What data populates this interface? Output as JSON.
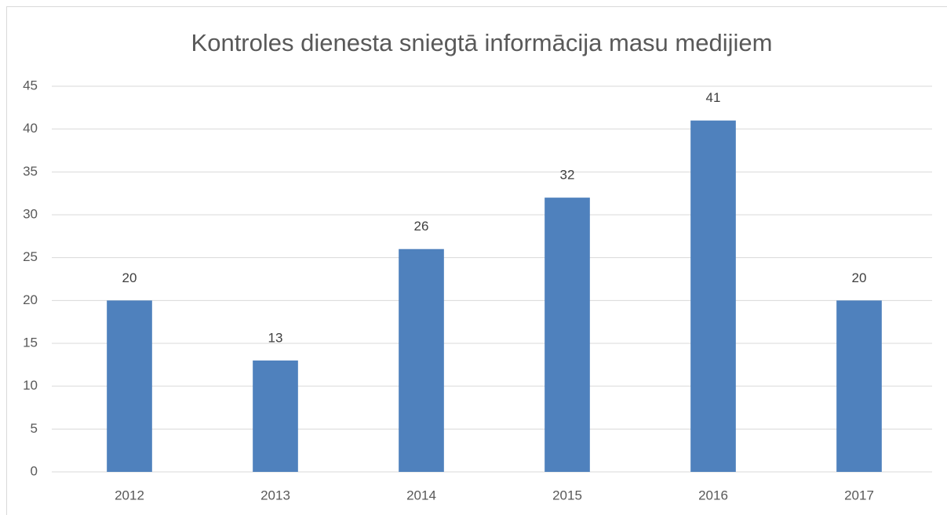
{
  "chart_data": {
    "type": "bar",
    "title": "Kontroles dienesta sniegtā informācija masu medijiem",
    "categories": [
      "2012",
      "2013",
      "2014",
      "2015",
      "2016",
      "2017"
    ],
    "values": [
      20,
      13,
      26,
      32,
      41,
      20
    ],
    "color": "#4f81bd",
    "ylim": [
      0,
      45
    ],
    "yticks": [
      0,
      5,
      10,
      15,
      20,
      25,
      30,
      35,
      40,
      45
    ],
    "grid": true
  }
}
